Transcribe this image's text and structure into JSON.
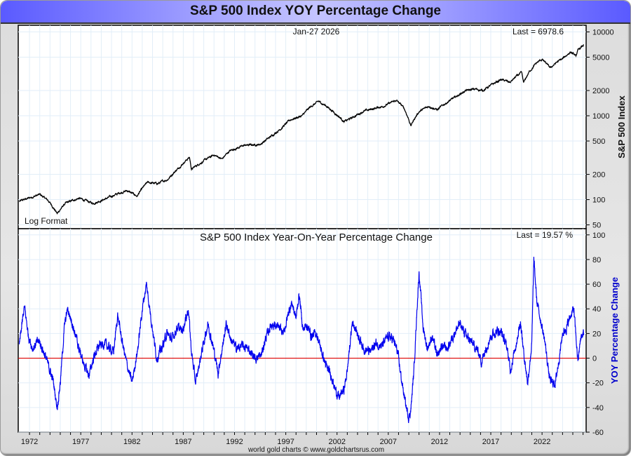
{
  "title": "S&P 500 Index YOY Percentage Change",
  "footer": "world gold charts © www.goldchartsrus.com",
  "colors": {
    "index_line": "#000000",
    "yoy_line": "#0000ee",
    "zero_line": "#dd0000",
    "grid": "#e2eef8",
    "yoy_label": "#0000cc"
  },
  "chart_data": [
    {
      "type": "line",
      "title": "S&P 500 Index",
      "date_label": "Jan-27  2026",
      "last_label": "Last = 6978.6",
      "corner_label": "Log Format",
      "ylabel": "S&P 500 Index",
      "yscale": "log",
      "ylim": [
        45,
        12000
      ],
      "yticks": [
        10000,
        5000,
        2000,
        1000,
        500,
        200,
        100,
        50
      ],
      "ytick_labels": [
        "10000",
        "5000",
        "2000",
        "1000",
        "500",
        "200",
        "100",
        "50"
      ],
      "grid": true,
      "x": [
        1971.0,
        1972.0,
        1973.0,
        1973.8,
        1974.7,
        1975.5,
        1976.8,
        1978.2,
        1979.5,
        1980.8,
        1981.5,
        1982.5,
        1983.5,
        1984.5,
        1985.5,
        1986.5,
        1987.6,
        1987.8,
        1988.5,
        1990.0,
        1990.8,
        1991.5,
        1993.0,
        1994.5,
        1995.5,
        1996.5,
        1997.5,
        1998.6,
        1999.5,
        2000.2,
        2000.9,
        2001.7,
        2002.7,
        2003.5,
        2004.5,
        2005.5,
        2006.5,
        2007.8,
        2008.5,
        2009.2,
        2010.0,
        2011.0,
        2011.8,
        2012.5,
        2013.5,
        2014.5,
        2015.5,
        2016.2,
        2017.0,
        2018.0,
        2018.9,
        2019.5,
        2020.0,
        2020.2,
        2020.8,
        2021.5,
        2022.0,
        2022.8,
        2023.5,
        2024.0,
        2024.8,
        2025.3,
        2025.5,
        2026.07
      ],
      "y": [
        95,
        105,
        115,
        98,
        68,
        90,
        104,
        90,
        103,
        120,
        128,
        110,
        160,
        155,
        175,
        235,
        320,
        230,
        265,
        340,
        305,
        380,
        445,
        455,
        560,
        700,
        900,
        1000,
        1300,
        1480,
        1320,
        1100,
        850,
        950,
        1120,
        1210,
        1300,
        1520,
        1250,
        760,
        1120,
        1300,
        1180,
        1380,
        1650,
        1980,
        2080,
        2000,
        2300,
        2700,
        2500,
        2950,
        3250,
        2450,
        3400,
        4300,
        4700,
        3700,
        4400,
        4750,
        5800,
        5100,
        6000,
        6978.6
      ],
      "xlim": [
        1970.9,
        2026.3
      ]
    },
    {
      "type": "line",
      "title": "S&P 500 Index Year-On-Year Percentage Change",
      "last_label": "Last = 19.57 %",
      "ylabel": "YOY Percentage Change",
      "ylim": [
        -60,
        105
      ],
      "yticks": [
        100,
        80,
        60,
        40,
        20,
        0,
        -20,
        -40,
        -60
      ],
      "ytick_labels": [
        "100",
        "80",
        "60",
        "40",
        "20",
        "0",
        "-20",
        "-40",
        "-60"
      ],
      "grid": true,
      "reference_line": 0,
      "xticks": [
        1972,
        1977,
        1982,
        1987,
        1992,
        1997,
        2002,
        2007,
        2012,
        2017,
        2022
      ],
      "xtick_labels": [
        "1972",
        "1977",
        "1982",
        "1987",
        "1992",
        "1997",
        "2002",
        "2007",
        "2012",
        "2017",
        "2022"
      ],
      "x": [
        1971.0,
        1971.5,
        1971.9,
        1972.3,
        1972.9,
        1973.4,
        1973.8,
        1974.3,
        1974.7,
        1975.0,
        1975.4,
        1975.7,
        1976.2,
        1976.8,
        1977.3,
        1977.8,
        1978.3,
        1978.8,
        1979.3,
        1979.8,
        1980.2,
        1980.6,
        1981.0,
        1981.5,
        1982.0,
        1982.6,
        1983.0,
        1983.4,
        1983.9,
        1984.4,
        1984.9,
        1985.4,
        1985.9,
        1986.4,
        1986.9,
        1987.5,
        1987.8,
        1988.2,
        1988.8,
        1989.4,
        1989.9,
        1990.4,
        1990.8,
        1991.2,
        1991.7,
        1992.2,
        1992.8,
        1993.4,
        1994.0,
        1994.6,
        1995.0,
        1995.6,
        1996.2,
        1996.8,
        1997.3,
        1997.6,
        1998.0,
        1998.3,
        1998.7,
        1999.0,
        1999.5,
        2000.0,
        2000.5,
        2001.0,
        2001.5,
        2001.8,
        2002.2,
        2002.7,
        2003.0,
        2003.5,
        2004.0,
        2004.6,
        2005.2,
        2005.8,
        2006.4,
        2007.0,
        2007.5,
        2007.9,
        2008.3,
        2008.7,
        2009.0,
        2009.2,
        2009.5,
        2009.8,
        2010.0,
        2010.4,
        2010.8,
        2011.3,
        2011.8,
        2012.2,
        2012.8,
        2013.4,
        2014.0,
        2014.6,
        2015.2,
        2015.8,
        2016.1,
        2016.5,
        2017.0,
        2017.6,
        2018.0,
        2018.6,
        2018.9,
        2019.3,
        2019.9,
        2020.2,
        2020.6,
        2021.0,
        2021.2,
        2021.5,
        2021.9,
        2022.3,
        2022.7,
        2022.9,
        2023.3,
        2023.7,
        2024.0,
        2024.4,
        2024.8,
        2025.1,
        2025.3,
        2025.5,
        2025.8,
        2026.07
      ],
      "y": [
        10,
        42,
        18,
        8,
        14,
        5,
        -5,
        -18,
        -40,
        -20,
        25,
        40,
        28,
        8,
        -5,
        -14,
        2,
        10,
        12,
        8,
        5,
        35,
        15,
        -5,
        -20,
        10,
        40,
        60,
        30,
        0,
        8,
        20,
        15,
        25,
        22,
        40,
        5,
        -20,
        5,
        28,
        10,
        -12,
        8,
        28,
        14,
        8,
        10,
        7,
        0,
        2,
        15,
        28,
        25,
        20,
        38,
        45,
        32,
        52,
        22,
        28,
        18,
        20,
        5,
        -8,
        -15,
        -25,
        -32,
        -25,
        -10,
        30,
        20,
        8,
        5,
        12,
        10,
        18,
        15,
        5,
        -18,
        -38,
        -48,
        -42,
        -10,
        40,
        70,
        25,
        8,
        18,
        0,
        10,
        8,
        20,
        28,
        18,
        12,
        5,
        -3,
        8,
        18,
        22,
        22,
        8,
        -10,
        5,
        30,
        5,
        -20,
        12,
        80,
        45,
        30,
        12,
        -15,
        -20,
        -20,
        2,
        20,
        25,
        35,
        40,
        18,
        -3,
        18,
        19.57
      ],
      "xlim": [
        1970.9,
        2026.3
      ]
    }
  ]
}
